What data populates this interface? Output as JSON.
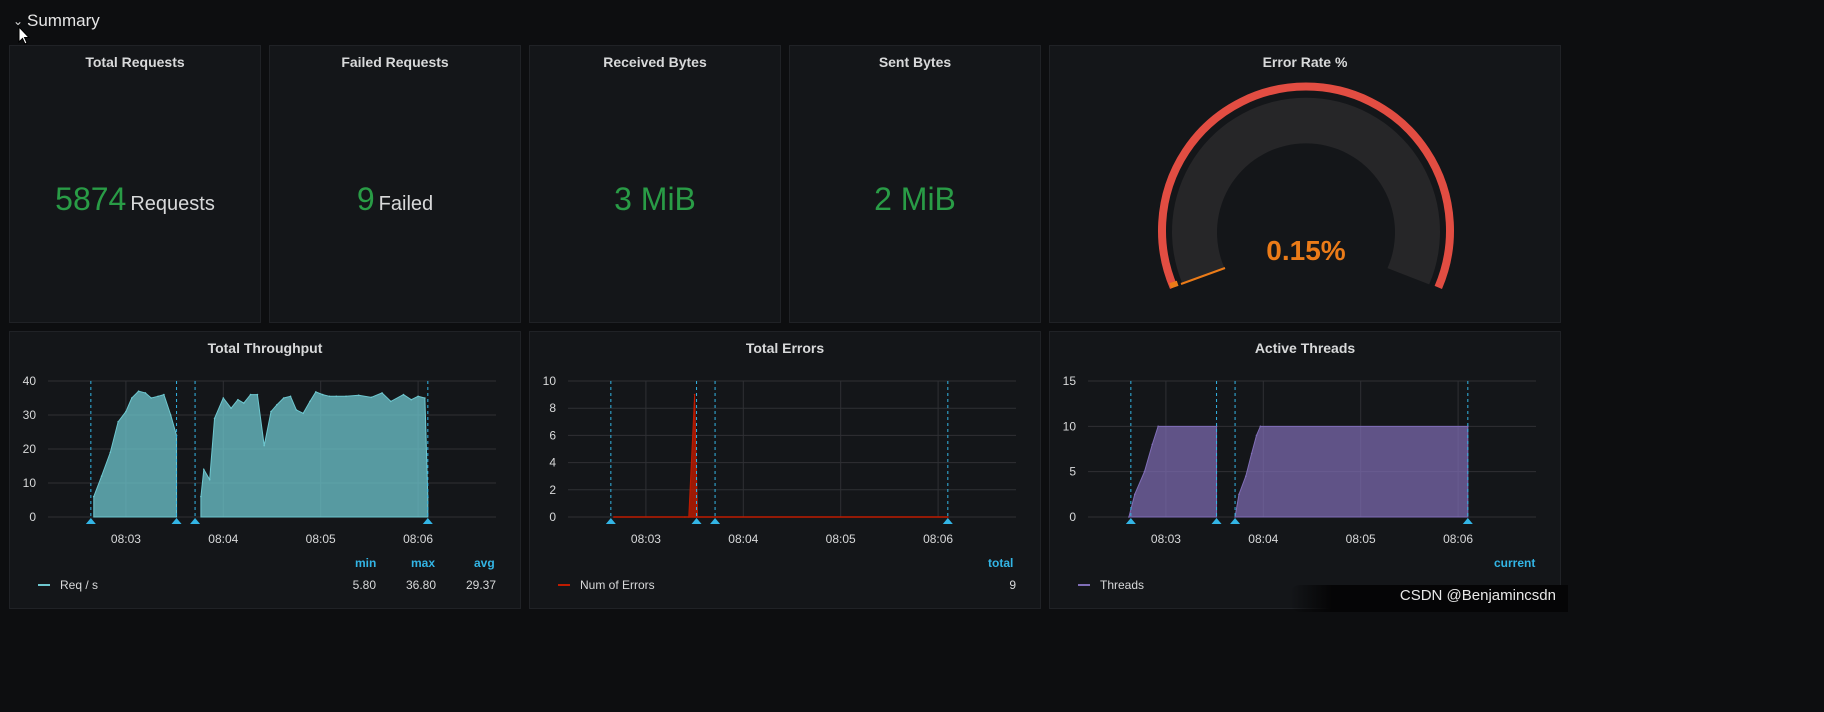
{
  "row": {
    "title": "Summary"
  },
  "stats": {
    "total_requests": {
      "title": "Total Requests",
      "value": "5874",
      "unit": "Requests"
    },
    "failed_requests": {
      "title": "Failed Requests",
      "value": "9",
      "unit": "Failed"
    },
    "received_bytes": {
      "title": "Received Bytes",
      "value": "3 MiB"
    },
    "sent_bytes": {
      "title": "Sent Bytes",
      "value": "2 MiB"
    }
  },
  "gauge": {
    "title": "Error Rate %",
    "value_text": "0.15%",
    "value": 0.15,
    "color_value": "#eb7b18",
    "color_threshold": "#e24d42"
  },
  "colors": {
    "green": "#299c46",
    "cyan": "#33b5e5",
    "red": "#e24d42",
    "throughput": "#6ec7cf",
    "errors": "#bf1b00",
    "threads": "#806eb7"
  },
  "charts": {
    "throughput": {
      "title": "Total Throughput",
      "legend": {
        "headers": [
          "min",
          "max",
          "avg"
        ],
        "series": "Req / s",
        "values": [
          "5.80",
          "36.80",
          "29.37"
        ]
      }
    },
    "errors": {
      "title": "Total Errors",
      "legend": {
        "headers": [
          "total"
        ],
        "series": "Num of Errors",
        "values": [
          "9"
        ]
      }
    },
    "threads": {
      "title": "Active Threads",
      "legend": {
        "headers": [
          "current"
        ],
        "series": "Threads",
        "values": [
          ""
        ]
      }
    }
  },
  "chart_data": [
    {
      "type": "area",
      "title": "Total Throughput",
      "x_ticks": [
        "08:03",
        "08:04",
        "08:05",
        "08:06"
      ],
      "y_ticks": [
        "0",
        "10",
        "20",
        "30",
        "40"
      ],
      "ylim": [
        0,
        40
      ],
      "xlim_minutes": [
        2.2,
        6.8
      ],
      "grid": true,
      "legend_placement": "bottom",
      "annotations_minutes": [
        2.64,
        3.52,
        3.71,
        6.1
      ],
      "series": [
        {
          "name": "Req / s",
          "segments": [
            {
              "x": [
                2.67,
                2.75,
                2.84,
                2.92,
                3.0,
                3.06,
                3.13,
                3.2,
                3.26,
                3.33,
                3.39,
                3.46,
                3.52
              ],
              "y": [
                6,
                12,
                19,
                28,
                31,
                35,
                37,
                36.5,
                35,
                35.5,
                36,
                30,
                24
              ]
            },
            {
              "x": [
                3.77,
                3.8,
                3.86,
                3.91,
                4.0,
                4.08,
                4.15,
                4.21,
                4.28,
                4.35,
                4.42,
                4.49,
                4.55,
                4.62,
                4.69,
                4.75,
                4.82,
                4.89,
                4.95,
                5.02,
                5.09,
                5.16,
                5.26,
                5.39,
                5.52,
                5.63,
                5.72,
                5.85,
                5.93,
                6.0,
                6.07,
                6.1
              ],
              "y": [
                6,
                14,
                11,
                29,
                35,
                32,
                34.5,
                33.5,
                36,
                36,
                21,
                31,
                33,
                35,
                35.5,
                31.5,
                30.5,
                34,
                36.8,
                36,
                35.5,
                35.5,
                35.5,
                35.8,
                35.2,
                36.5,
                34,
                36,
                34.5,
                35.5,
                35,
                5.8
              ]
            }
          ]
        }
      ]
    },
    {
      "type": "area",
      "title": "Total Errors",
      "x_ticks": [
        "08:03",
        "08:04",
        "08:05",
        "08:06"
      ],
      "y_ticks": [
        "0",
        "2",
        "4",
        "6",
        "8",
        "10"
      ],
      "ylim": [
        0,
        10
      ],
      "xlim_minutes": [
        2.2,
        6.8
      ],
      "grid": true,
      "legend_placement": "bottom",
      "annotations_minutes": [
        2.64,
        3.52,
        3.71,
        6.1
      ],
      "series": [
        {
          "name": "Num of Errors",
          "x": [
            2.67,
            3.4,
            3.44,
            3.5,
            3.53,
            6.1
          ],
          "y": [
            0,
            0,
            0,
            9,
            0,
            0
          ]
        }
      ]
    },
    {
      "type": "area",
      "title": "Active Threads",
      "x_ticks": [
        "08:03",
        "08:04",
        "08:05",
        "08:06"
      ],
      "y_ticks": [
        "0",
        "5",
        "10",
        "15"
      ],
      "ylim": [
        0,
        15
      ],
      "xlim_minutes": [
        2.2,
        6.8
      ],
      "grid": true,
      "legend_placement": "bottom",
      "annotations_minutes": [
        2.64,
        3.52,
        3.71,
        6.1
      ],
      "series": [
        {
          "name": "Threads",
          "segments": [
            {
              "x": [
                2.62,
                2.68,
                2.78,
                2.86,
                2.92,
                3.52
              ],
              "y": [
                0,
                2.5,
                5,
                8,
                10,
                10
              ]
            },
            {
              "x": [
                3.71,
                3.75,
                3.82,
                3.88,
                3.93,
                3.97,
                6.1
              ],
              "y": [
                0,
                2.5,
                4.5,
                7,
                9,
                10,
                10
              ]
            }
          ]
        }
      ]
    }
  ]
}
